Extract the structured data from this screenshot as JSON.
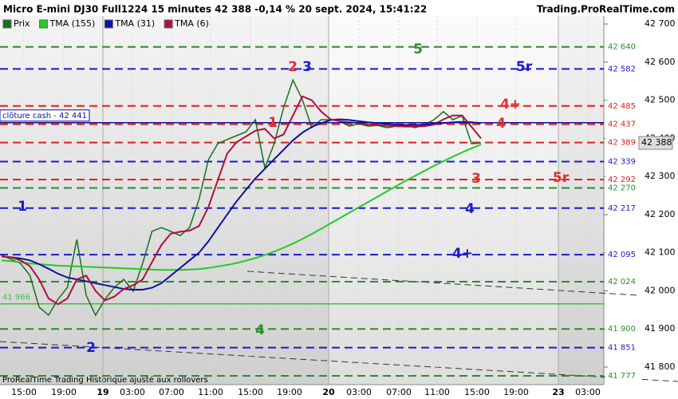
{
  "chart_data": {
    "type": "line",
    "title": "Micro E-mini DJ30 Full1224 15 minutes 42 388 -0,14 % 20 sept. 2024, 15:41:22",
    "source": "Trading.ProRealTime.com",
    "footer": "ProRealTime Trading  Historique ajusté aux rollovers",
    "xticks": [
      "15:00",
      "19:00",
      "19",
      "03:00",
      "07:00",
      "11:00",
      "15:00",
      "19:00",
      "20",
      "03:00",
      "07:00",
      "11:00",
      "15:00",
      "19:00",
      "23",
      "03:00"
    ],
    "ylim": [
      41754,
      42721
    ],
    "yticks": [
      {
        "value": 42700,
        "label": "42 700"
      },
      {
        "value": 42600,
        "label": "42 600"
      },
      {
        "value": 42500,
        "label": "42 500"
      },
      {
        "value": 42400,
        "label": "42 400"
      },
      {
        "value": 42300,
        "label": "42 300"
      },
      {
        "value": 42200,
        "label": "42 200"
      },
      {
        "value": 42100,
        "label": "42 100"
      },
      {
        "value": 42000,
        "label": "42 000"
      },
      {
        "value": 41900,
        "label": "41 900"
      },
      {
        "value": 41800,
        "label": "41 800"
      }
    ],
    "series": [
      {
        "name": "Prix",
        "color": "#1a6e1a",
        "values": [
          42093,
          42083,
          42072,
          42041,
          41957,
          41936,
          41978,
          42009,
          42135,
          41988,
          41936,
          41978,
          42009,
          42030,
          41999,
          42072,
          42156,
          42166,
          42156,
          42145,
          42166,
          42240,
          42344,
          42386,
          42397,
          42407,
          42417,
          42449,
          42323,
          42386,
          42480,
          42553,
          42501,
          42428,
          42449,
          42449,
          42445,
          42432,
          42438,
          42432,
          42434,
          42428,
          42432,
          42434,
          42428,
          42436,
          42449,
          42470,
          42449,
          42459,
          42386,
          42388
        ]
      },
      {
        "name": "TMA (155)",
        "color": "#22cc22",
        "values": [
          42080,
          42078,
          42075,
          42072,
          42070,
          42068,
          42066,
          42065,
          42064,
          42063,
          42062,
          42061,
          42060,
          42059,
          42058,
          42057,
          42056,
          42055,
          42055,
          42055,
          42056,
          42057,
          42060,
          42064,
          42068,
          42073,
          42079,
          42086,
          42094,
          42103,
          42113,
          42124,
          42136,
          42149,
          42163,
          42177,
          42191,
          42205,
          42219,
          42233,
          42247,
          42261,
          42275,
          42289,
          42302,
          42315,
          42328,
          42340,
          42352,
          42363,
          42374,
          42384
        ]
      },
      {
        "name": "TMA (31)",
        "color": "#1010a0",
        "values": [
          42090,
          42088,
          42085,
          42080,
          42070,
          42058,
          42045,
          42035,
          42030,
          42025,
          42020,
          42015,
          42010,
          42005,
          42003,
          42003,
          42008,
          42020,
          42040,
          42060,
          42080,
          42100,
          42130,
          42165,
          42200,
          42235,
          42265,
          42295,
          42320,
          42345,
          42370,
          42395,
          42415,
          42430,
          42440,
          42448,
          42450,
          42448,
          42445,
          42442,
          42440,
          42438,
          42436,
          42435,
          42435,
          42436,
          42438,
          42440,
          42442,
          42443,
          42442,
          42440
        ]
      },
      {
        "name": "TMA (6)",
        "color": "#b0103a",
        "values": [
          42090,
          42088,
          42080,
          42065,
          42030,
          41980,
          41965,
          41980,
          42030,
          42040,
          42000,
          41975,
          41985,
          42005,
          42015,
          42030,
          42075,
          42120,
          42150,
          42155,
          42158,
          42170,
          42220,
          42290,
          42360,
          42390,
          42405,
          42420,
          42425,
          42400,
          42410,
          42460,
          42510,
          42500,
          42470,
          42450,
          42445,
          42442,
          42440,
          42436,
          42435,
          42433,
          42432,
          42431,
          42431,
          42432,
          42436,
          42450,
          42460,
          42460,
          42430,
          42400
        ]
      }
    ],
    "levels": [
      {
        "value": 42640,
        "label": "42 640",
        "color": "#2e8b2e"
      },
      {
        "value": 42582,
        "label": "42 582",
        "color": "#1a1acc"
      },
      {
        "value": 42485,
        "label": "42 485",
        "color": "#e02020"
      },
      {
        "value": 42437,
        "label": "42 437",
        "color": "#e02020"
      },
      {
        "value": 42389,
        "label": "42 389",
        "color": "#e02020"
      },
      {
        "value": 42339,
        "label": "42 339",
        "color": "#1a1acc"
      },
      {
        "value": 42292,
        "label": "42 292",
        "color": "#e02020"
      },
      {
        "value": 42270,
        "label": "42 270",
        "color": "#2e8b2e"
      },
      {
        "value": 42217,
        "label": "42 217",
        "color": "#1a1acc"
      },
      {
        "value": 42095,
        "label": "42 095",
        "color": "#1a1acc"
      },
      {
        "value": 42024,
        "label": "42 024",
        "color": "#2e8b2e"
      },
      {
        "value": 41900,
        "label": "41 900",
        "color": "#2e8b2e"
      },
      {
        "value": 41851,
        "label": "41 851",
        "color": "#1a1acc"
      },
      {
        "value": 41777,
        "label": "41 777",
        "color": "#2e8b2e"
      }
    ],
    "close_cash": {
      "value": 42441,
      "label": "clôture cash -  42 441",
      "color": "#1010a0"
    },
    "support": {
      "value": 41966,
      "label": "41 966",
      "color": "#44bb44"
    },
    "last_price": {
      "value": 42388,
      "label": "42 388"
    },
    "annotations": [
      {
        "text": "5",
        "color": "#2e8b2e"
      },
      {
        "text": "5r",
        "color": "#1a1acc"
      },
      {
        "text": "2",
        "color": "#e03030"
      },
      {
        "text": "3",
        "color": "#1a1acc"
      },
      {
        "text": "4+",
        "color": "#e03030"
      },
      {
        "text": "1",
        "color": "#e03030"
      },
      {
        "text": "4",
        "color": "#e03030"
      },
      {
        "text": "3",
        "color": "#e03030"
      },
      {
        "text": "5r",
        "color": "#e03030"
      },
      {
        "text": "1",
        "color": "#1a1acc"
      },
      {
        "text": "4",
        "color": "#1a1acc"
      },
      {
        "text": "4+",
        "color": "#1a1acc"
      },
      {
        "text": "4",
        "color": "#2e8b2e"
      },
      {
        "text": "2",
        "color": "#1a1acc"
      }
    ]
  }
}
